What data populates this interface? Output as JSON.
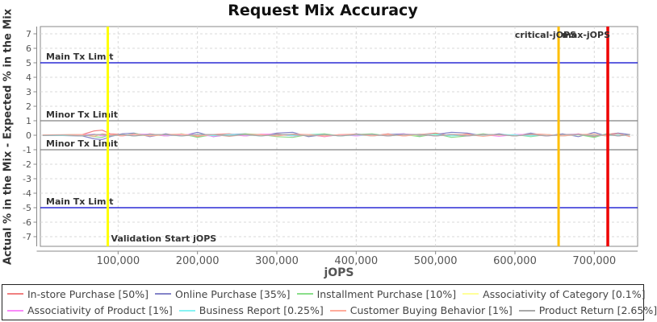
{
  "chart_data": {
    "type": "line",
    "title": "Request Mix Accuracy",
    "xlabel": "jOPS",
    "ylabel": "Actual % in the Mix - Expected % in the Mix",
    "xlim": [
      0,
      755000
    ],
    "ylim": [
      -7.7,
      7.5
    ],
    "grid": true,
    "legend_position": "bottom",
    "x_ticks": [
      100000,
      200000,
      300000,
      400000,
      500000,
      600000,
      700000
    ],
    "y_ticks": [
      7,
      6,
      5,
      4,
      3,
      2,
      1,
      0,
      -1,
      -2,
      -3,
      -4,
      -5,
      -6,
      -7
    ],
    "x": [
      5000,
      30000,
      55000,
      70000,
      80000,
      90000,
      105000,
      120000,
      140000,
      160000,
      180000,
      200000,
      220000,
      240000,
      260000,
      280000,
      300000,
      320000,
      340000,
      360000,
      380000,
      400000,
      420000,
      440000,
      460000,
      480000,
      500000,
      520000,
      540000,
      560000,
      580000,
      600000,
      620000,
      640000,
      660000,
      680000,
      700000,
      715000,
      730000,
      745000
    ],
    "series": [
      {
        "name": "In-store Purchase [50%]",
        "color": "#f08080",
        "values": [
          0.02,
          0.03,
          0.05,
          0.3,
          0.35,
          0.1,
          0.05,
          -0.05,
          0.1,
          -0.05,
          0.05,
          -0.1,
          0.05,
          0.1,
          -0.05,
          0.05,
          0.1,
          -0.05,
          0.05,
          -0.1,
          0.05,
          0.05,
          -0.05,
          0.1,
          -0.05,
          0.05,
          0.15,
          -0.05,
          0.1,
          -0.05,
          0.05,
          -0.05,
          0.1,
          0.05,
          -0.05,
          0.1,
          -0.1,
          0.05,
          0.15,
          -0.1
        ]
      },
      {
        "name": "Online Purchase [35%]",
        "color": "#8484c8",
        "values": [
          -0.02,
          -0.02,
          -0.05,
          -0.25,
          -0.3,
          -0.1,
          0.1,
          0.15,
          -0.1,
          0.1,
          -0.05,
          0.2,
          -0.1,
          0.05,
          0.1,
          -0.05,
          0.15,
          0.2,
          -0.1,
          0.05,
          -0.05,
          0.1,
          -0.05,
          0.05,
          0.1,
          -0.05,
          0.05,
          0.2,
          0.15,
          -0.05,
          0.1,
          -0.05,
          0.15,
          -0.05,
          0.1,
          -0.1,
          0.2,
          -0.05,
          0.15,
          0.05
        ]
      },
      {
        "name": "Installment Purchase [10%]",
        "color": "#8ade8a",
        "values": [
          0.01,
          0.02,
          0.05,
          -0.1,
          -0.15,
          0.05,
          -0.05,
          0.1,
          0.05,
          -0.05,
          0.1,
          -0.15,
          0.05,
          -0.05,
          0.1,
          0.05,
          -0.1,
          -0.15,
          0.05,
          0.1,
          -0.05,
          0.05,
          0.1,
          -0.05,
          0.05,
          -0.1,
          0.1,
          -0.15,
          -0.05,
          0.1,
          -0.05,
          0.05,
          -0.1,
          0.05,
          -0.05,
          0.05,
          -0.15,
          0.1,
          -0.05,
          0.05
        ]
      },
      {
        "name": "Associativity of Category [0.1%]",
        "color": "#ffff99",
        "values": [
          0,
          0.01,
          -0.01,
          0.02,
          -0.02,
          0.01,
          0.02,
          -0.01,
          -0.02,
          0.01,
          0.02,
          -0.02,
          0.01,
          0.02,
          -0.01,
          -0.02,
          0.02,
          0.01,
          -0.02,
          0.02,
          -0.01,
          -0.02,
          0.01,
          0.02,
          -0.02,
          0.01,
          0.02,
          -0.02,
          0.01,
          0.02,
          -0.01,
          -0.02,
          0.02,
          0.01,
          -0.02,
          0.01,
          0.02,
          -0.02,
          0.01,
          0.02
        ]
      },
      {
        "name": "Associativity of Product [1%]",
        "color": "#f98af9",
        "values": [
          0.01,
          0.02,
          0.03,
          0.08,
          -0.05,
          0.05,
          -0.05,
          0.05,
          0.08,
          -0.05,
          0.05,
          0.05,
          -0.08,
          0.05,
          -0.05,
          0.08,
          0.05,
          -0.05,
          0.05,
          -0.08,
          0.05,
          -0.05,
          0.05,
          -0.05,
          0.08,
          0.05,
          -0.05,
          0.05,
          -0.05,
          0.05,
          -0.08,
          0.05,
          0.05,
          -0.05,
          0.05,
          0.08,
          -0.05,
          0.05,
          -0.05,
          0.05
        ]
      },
      {
        "name": "Business Report [0.25%]",
        "color": "#86f3f3",
        "values": [
          -0.01,
          -0.02,
          -0.03,
          0.05,
          0.05,
          -0.05,
          0.03,
          -0.05,
          0.05,
          0.03,
          -0.05,
          0.05,
          -0.03,
          0.05,
          0.03,
          -0.05,
          0.05,
          -0.03,
          0.05,
          0.05,
          -0.05,
          0.03,
          -0.05,
          0.05,
          -0.03,
          0.05,
          0.05,
          -0.05,
          0.03,
          -0.05,
          0.05,
          0.03,
          -0.05,
          0.05,
          -0.05,
          0.03,
          0.05,
          -0.05,
          0.03,
          -0.05
        ]
      },
      {
        "name": "Customer Buying Behavior [1%]",
        "color": "#ffab9b",
        "values": [
          0.02,
          0.03,
          0.05,
          -0.08,
          0.1,
          0.05,
          -0.05,
          0.08,
          -0.05,
          0.05,
          0.08,
          -0.05,
          0.05,
          -0.08,
          0.05,
          0.05,
          -0.05,
          0.08,
          0.05,
          -0.05,
          0.05,
          0.08,
          -0.05,
          0.05,
          -0.05,
          0.08,
          -0.05,
          0.05,
          0.05,
          -0.08,
          0.05,
          -0.05,
          0.08,
          0.05,
          -0.05,
          0.05,
          0.08,
          -0.05,
          0.1,
          -0.08
        ]
      },
      {
        "name": "Product Return [2.65%]",
        "color": "#a8a8a8",
        "values": [
          -0.01,
          0.01,
          -0.05,
          0.05,
          0.05,
          -0.05,
          0.05,
          -0.05,
          0.05,
          0.05,
          -0.05,
          0.05,
          0.05,
          -0.05,
          0.05,
          -0.05,
          0.05,
          0.05,
          -0.05,
          0.05,
          -0.05,
          0.05,
          0.05,
          -0.05,
          0.05,
          0.05,
          -0.05,
          0.05,
          -0.05,
          0.05,
          0.05,
          -0.05,
          0.05,
          -0.05,
          0.05,
          0.05,
          -0.05,
          0.05,
          -0.05,
          0.05
        ]
      }
    ],
    "hlines": [
      {
        "value": 5,
        "color": "#0000cc",
        "label": "Main Tx Limit"
      },
      {
        "value": 1,
        "color": "#808080",
        "label": "Minor Tx Limit"
      },
      {
        "value": -1,
        "color": "#808080",
        "label": "Minor Tx Limit"
      },
      {
        "value": -5,
        "color": "#0000cc",
        "label": "Main Tx Limit"
      }
    ],
    "vlines": [
      {
        "value": 87000,
        "color": "#ffff00",
        "width": 3,
        "label": "Validation Start jOPS",
        "label_position": "bottom-start",
        "label_dx": 4
      },
      {
        "value": 655000,
        "color": "#ffbf00",
        "width": 3,
        "label": "critical-jOPS",
        "label_position": "top-end",
        "label_dx": 22
      },
      {
        "value": 717000,
        "color": "#ee0000",
        "width": 3.5,
        "label": "max-jOPS",
        "label_position": "top-end",
        "label_dx": 3
      }
    ]
  }
}
